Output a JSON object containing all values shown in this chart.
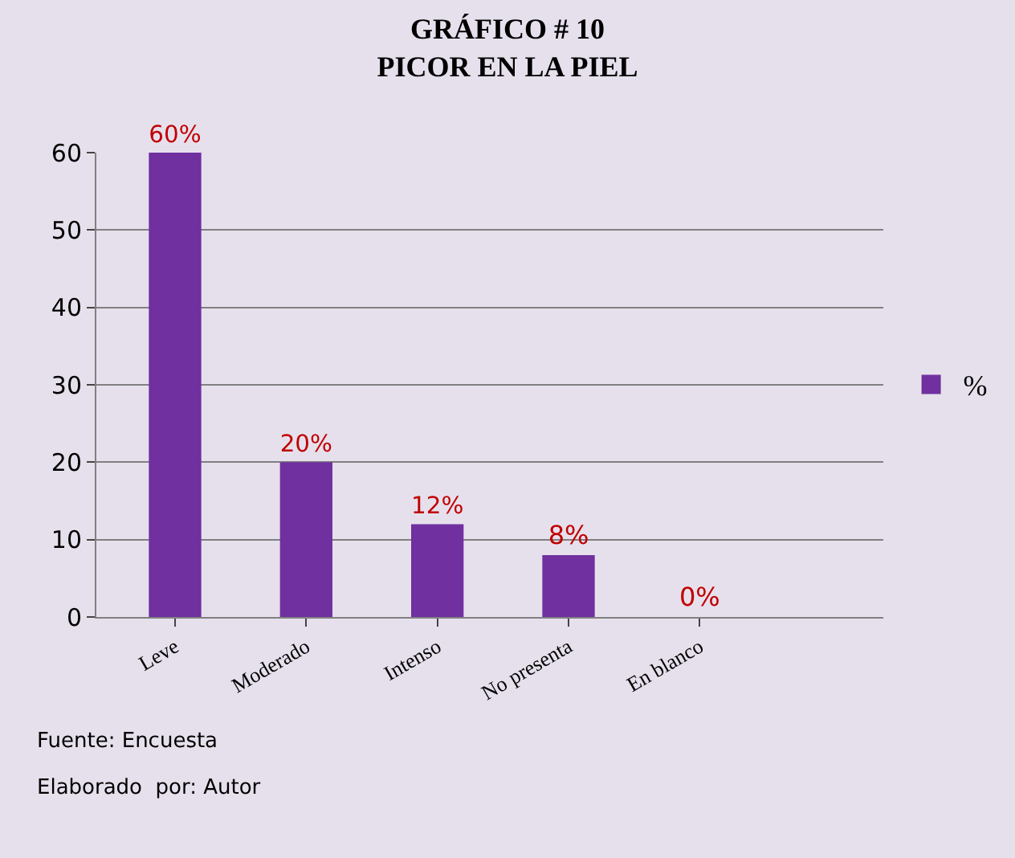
{
  "chart_data": {
    "type": "bar",
    "title": "GRÁFICO # 10\nPICOR EN LA PIEL",
    "categories": [
      "Leve",
      "Moderado",
      "Intenso",
      "No presenta",
      "En blanco"
    ],
    "series": [
      {
        "name": "%",
        "color": "#7030a0",
        "values": [
          60,
          20,
          12,
          8,
          0
        ],
        "value_labels": [
          "60%",
          "20%",
          "12%",
          "8%",
          "0%"
        ]
      }
    ],
    "ylim": [
      0,
      60
    ],
    "yticks": [
      0,
      10,
      20,
      30,
      40,
      50,
      60
    ],
    "grid": "y",
    "legend": "right",
    "annotations": [
      "Fuente: Encuesta",
      "Elaborado  por: Autor"
    ]
  }
}
